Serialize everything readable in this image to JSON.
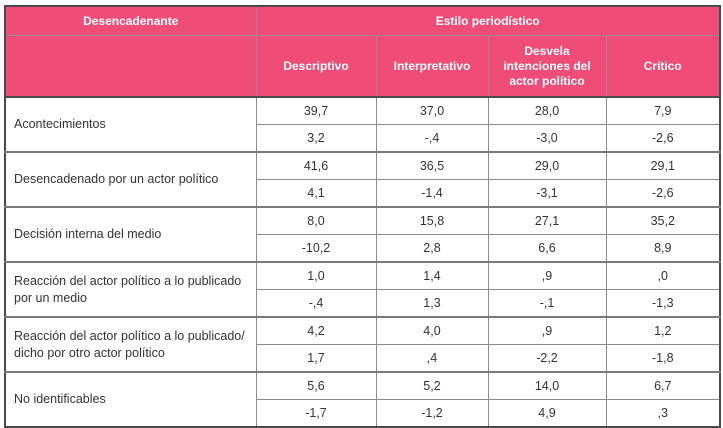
{
  "chart_data": {
    "type": "table",
    "title": "",
    "column_group_header": "Estilo periodístico",
    "row_group_header": "Desencadenante",
    "columns": [
      "Descriptivo",
      "Interpretativo",
      "Desvela intenciones del actor político",
      "Crítico"
    ],
    "rows": [
      {
        "label": "Acontecimientos",
        "row1": [
          "39,7",
          "37,0",
          "28,0",
          "7,9"
        ],
        "row2": [
          "3,2",
          "-,4",
          "-3,0",
          "-2,6"
        ]
      },
      {
        "label": "Desencadenado por un actor político",
        "row1": [
          "41,6",
          "36,5",
          "29,0",
          "29,1"
        ],
        "row2": [
          "4,1",
          "-1,4",
          "-3,1",
          "-2,6"
        ]
      },
      {
        "label": "Decisión interna del medio",
        "row1": [
          "8,0",
          "15,8",
          "27,1",
          "35,2"
        ],
        "row2": [
          "-10,2",
          "2,8",
          "6,6",
          "8,9"
        ]
      },
      {
        "label": "Reacción del actor político a lo publicado por un medio",
        "row1": [
          "1,0",
          "1,4",
          ",9",
          ",0"
        ],
        "row2": [
          "-,4",
          "1,3",
          "-,1",
          "-1,3"
        ]
      },
      {
        "label": "Reacción del actor político a lo publicado/ dicho por otro actor político",
        "row1": [
          "4,2",
          "4,0",
          ",9",
          "1,2"
        ],
        "row2": [
          "1,7",
          ",4",
          "-2,2",
          "-1,8"
        ]
      },
      {
        "label": "No identificables",
        "row1": [
          "5,6",
          "5,2",
          "14,0",
          "6,7"
        ],
        "row2": [
          "-1,7",
          "-1,2",
          "4,9",
          ",3"
        ]
      }
    ],
    "colors": {
      "header_bg": "#EF4D78",
      "header_text": "#FFFFFF",
      "grid": "#8C8C8C",
      "outer_border": "#4A4A4A",
      "body_text": "#333333"
    }
  }
}
